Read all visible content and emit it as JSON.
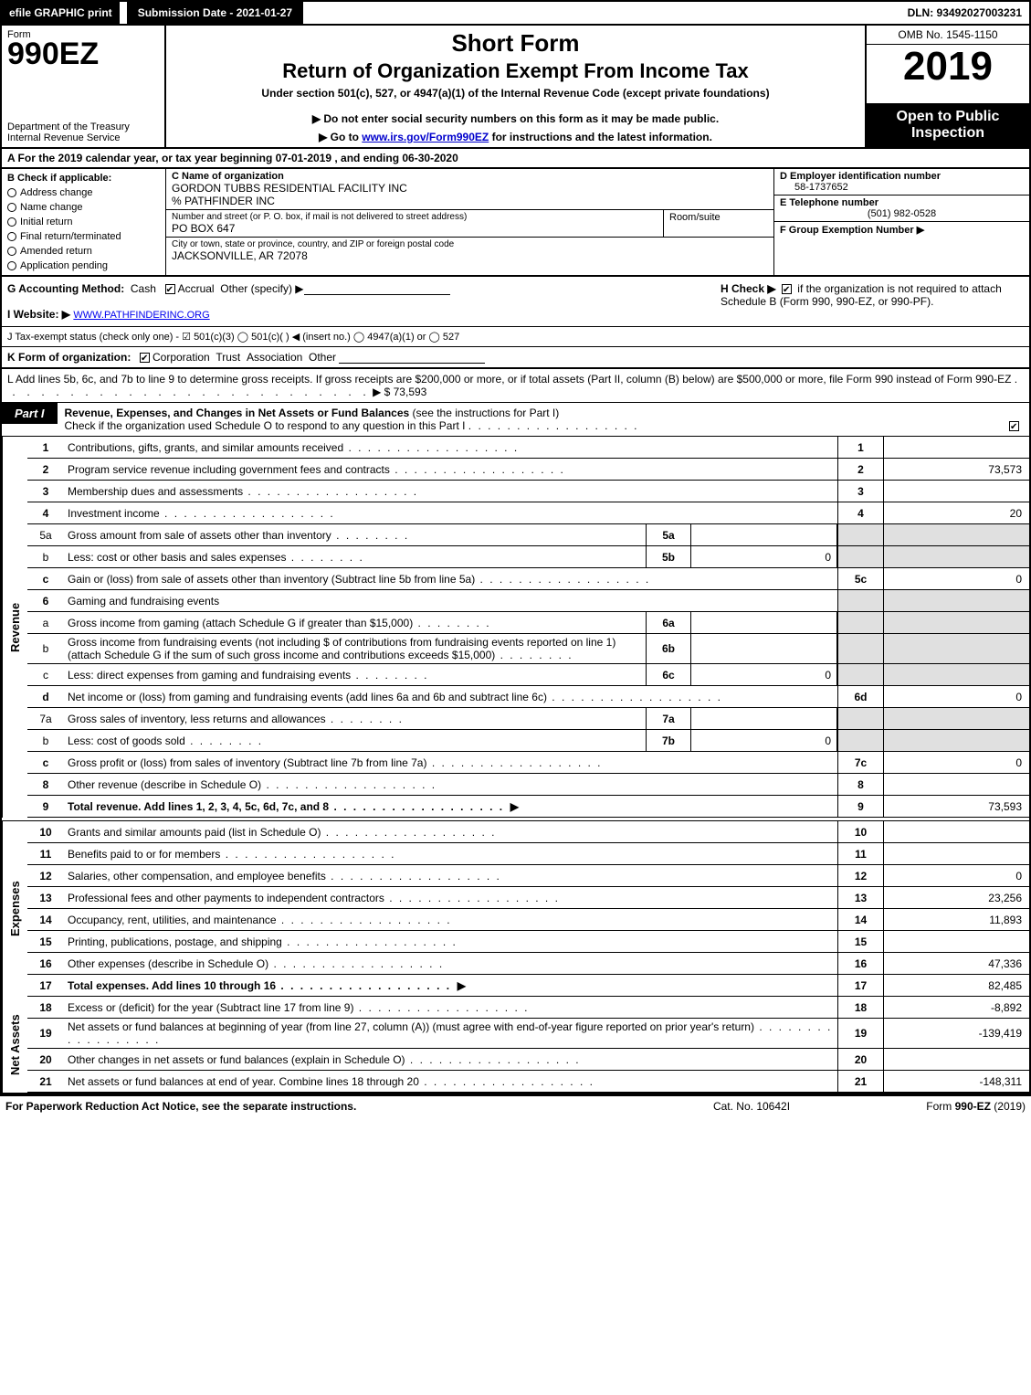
{
  "topbar": {
    "efile": "efile GRAPHIC print",
    "subdate": "Submission Date - 2021-01-27",
    "dln": "DLN: 93492027003231"
  },
  "header": {
    "form_word": "Form",
    "form_num": "990EZ",
    "dept": "Department of the Treasury\nInternal Revenue Service",
    "short": "Short Form",
    "title": "Return of Organization Exempt From Income Tax",
    "under": "Under section 501(c), 527, or 4947(a)(1) of the Internal Revenue Code (except private foundations)",
    "note1": "▶ Do not enter social security numbers on this form as it may be made public.",
    "note2_pre": "▶ Go to ",
    "note2_link": "www.irs.gov/Form990EZ",
    "note2_post": " for instructions and the latest information.",
    "omb": "OMB No. 1545-1150",
    "year": "2019",
    "open": "Open to Public Inspection"
  },
  "row_a": "A  For the 2019 calendar year, or tax year beginning 07-01-2019 , and ending 06-30-2020",
  "col_b": {
    "hdr": "B  Check if applicable:",
    "opts": [
      "Address change",
      "Name change",
      "Initial return",
      "Final return/terminated",
      "Amended return",
      "Application pending"
    ]
  },
  "col_c": {
    "name_lbl": "C Name of organization",
    "name_val": "GORDON TUBBS RESIDENTIAL FACILITY INC",
    "careof": "% PATHFINDER INC",
    "addr_lbl": "Number and street (or P. O. box, if mail is not delivered to street address)",
    "room_lbl": "Room/suite",
    "addr_val": "PO BOX 647",
    "city_lbl": "City or town, state or province, country, and ZIP or foreign postal code",
    "city_val": "JACKSONVILLE, AR  72078"
  },
  "col_d": {
    "d_lbl": "D Employer identification number",
    "d_val": "58-1737652",
    "e_lbl": "E Telephone number",
    "e_val": "(501) 982-0528",
    "f_lbl": "F Group Exemption Number  ▶"
  },
  "gh": {
    "g": "G Accounting Method:",
    "g_cash": "Cash",
    "g_accr": "Accrual",
    "g_other": "Other (specify) ▶",
    "i": "I Website: ▶",
    "i_val": "WWW.PATHFINDERINC.ORG",
    "h1": "H  Check ▶",
    "h2": " if the organization is not required to attach Schedule B (Form 990, 990-EZ, or 990-PF)."
  },
  "line_j": "J Tax-exempt status (check only one) -  ☑ 501(c)(3)  ◯ 501(c)(  ) ◀ (insert no.)  ◯ 4947(a)(1) or  ◯ 527",
  "line_k": {
    "pre": "K Form of organization:",
    "opts": [
      "Corporation",
      "Trust",
      "Association",
      "Other"
    ]
  },
  "line_l": {
    "text": "L Add lines 5b, 6c, and 7b to line 9 to determine gross receipts. If gross receipts are $200,000 or more, or if total assets (Part II, column (B) below) are $500,000 or more, file Form 990 instead of Form 990-EZ",
    "val": "▶ $ 73,593"
  },
  "part1": {
    "tab": "Part I",
    "title": "Revenue, Expenses, and Changes in Net Assets or Fund Balances",
    "sub": " (see the instructions for Part I)",
    "check": "Check if the organization used Schedule O to respond to any question in this Part I"
  },
  "revenue_rows": [
    {
      "n": "1",
      "d": "Contributions, gifts, grants, and similar amounts received",
      "code": "1",
      "val": ""
    },
    {
      "n": "2",
      "d": "Program service revenue including government fees and contracts",
      "code": "2",
      "val": "73,573"
    },
    {
      "n": "3",
      "d": "Membership dues and assessments",
      "code": "3",
      "val": ""
    },
    {
      "n": "4",
      "d": "Investment income",
      "code": "4",
      "val": "20"
    }
  ],
  "row5a": {
    "n": "5a",
    "d": "Gross amount from sale of assets other than inventory",
    "mini": "5a",
    "miniv": ""
  },
  "row5b": {
    "n": "b",
    "d": "Less: cost or other basis and sales expenses",
    "mini": "5b",
    "miniv": "0"
  },
  "row5c": {
    "n": "c",
    "d": "Gain or (loss) from sale of assets other than inventory (Subtract line 5b from line 5a)",
    "code": "5c",
    "val": "0"
  },
  "row6": {
    "n": "6",
    "d": "Gaming and fundraising events"
  },
  "row6a": {
    "n": "a",
    "d": "Gross income from gaming (attach Schedule G if greater than $15,000)",
    "mini": "6a",
    "miniv": ""
  },
  "row6b": {
    "n": "b",
    "d": "Gross income from fundraising events (not including $                    of contributions from fundraising events reported on line 1) (attach Schedule G if the sum of such gross income and contributions exceeds $15,000)",
    "mini": "6b",
    "miniv": ""
  },
  "row6c": {
    "n": "c",
    "d": "Less: direct expenses from gaming and fundraising events",
    "mini": "6c",
    "miniv": "0"
  },
  "row6d": {
    "n": "d",
    "d": "Net income or (loss) from gaming and fundraising events (add lines 6a and 6b and subtract line 6c)",
    "code": "6d",
    "val": "0"
  },
  "row7a": {
    "n": "7a",
    "d": "Gross sales of inventory, less returns and allowances",
    "mini": "7a",
    "miniv": ""
  },
  "row7b": {
    "n": "b",
    "d": "Less: cost of goods sold",
    "mini": "7b",
    "miniv": "0"
  },
  "row7c": {
    "n": "c",
    "d": "Gross profit or (loss) from sales of inventory (Subtract line 7b from line 7a)",
    "code": "7c",
    "val": "0"
  },
  "row8": {
    "n": "8",
    "d": "Other revenue (describe in Schedule O)",
    "code": "8",
    "val": ""
  },
  "row9": {
    "n": "9",
    "d": "Total revenue. Add lines 1, 2, 3, 4, 5c, 6d, 7c, and 8",
    "code": "9",
    "val": "73,593"
  },
  "expense_rows": [
    {
      "n": "10",
      "d": "Grants and similar amounts paid (list in Schedule O)",
      "code": "10",
      "val": ""
    },
    {
      "n": "11",
      "d": "Benefits paid to or for members",
      "code": "11",
      "val": ""
    },
    {
      "n": "12",
      "d": "Salaries, other compensation, and employee benefits",
      "code": "12",
      "val": "0"
    },
    {
      "n": "13",
      "d": "Professional fees and other payments to independent contractors",
      "code": "13",
      "val": "23,256"
    },
    {
      "n": "14",
      "d": "Occupancy, rent, utilities, and maintenance",
      "code": "14",
      "val": "11,893"
    },
    {
      "n": "15",
      "d": "Printing, publications, postage, and shipping",
      "code": "15",
      "val": ""
    },
    {
      "n": "16",
      "d": "Other expenses (describe in Schedule O)",
      "code": "16",
      "val": "47,336"
    },
    {
      "n": "17",
      "d": "Total expenses. Add lines 10 through 16",
      "code": "17",
      "val": "82,485",
      "bold": true
    }
  ],
  "netasset_rows": [
    {
      "n": "18",
      "d": "Excess or (deficit) for the year (Subtract line 17 from line 9)",
      "code": "18",
      "val": "-8,892"
    },
    {
      "n": "19",
      "d": "Net assets or fund balances at beginning of year (from line 27, column (A)) (must agree with end-of-year figure reported on prior year's return)",
      "code": "19",
      "val": "-139,419"
    },
    {
      "n": "20",
      "d": "Other changes in net assets or fund balances (explain in Schedule O)",
      "code": "20",
      "val": ""
    },
    {
      "n": "21",
      "d": "Net assets or fund balances at end of year. Combine lines 18 through 20",
      "code": "21",
      "val": "-148,311"
    }
  ],
  "footer": {
    "l": "For Paperwork Reduction Act Notice, see the separate instructions.",
    "m": "Cat. No. 10642I",
    "r": "Form 990-EZ (2019)"
  },
  "side_labels": {
    "rev": "Revenue",
    "exp": "Expenses",
    "net": "Net Assets"
  }
}
